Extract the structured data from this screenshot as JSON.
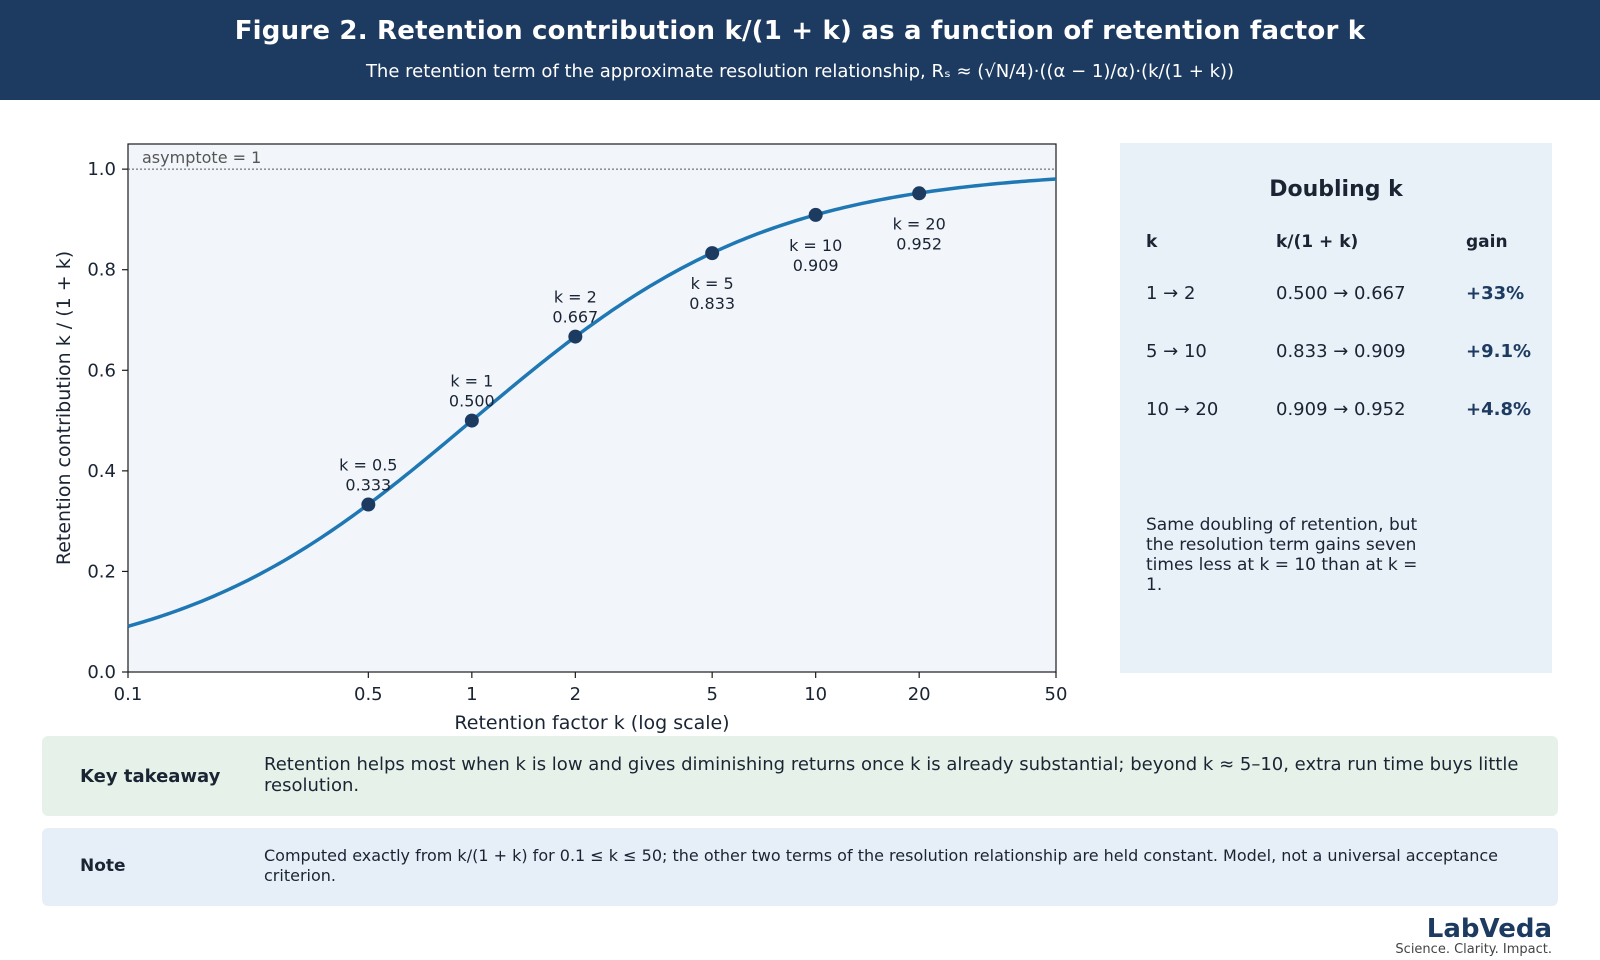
{
  "header": {
    "title": "Figure 2. Retention contribution k/(1 + k) as a function of retention factor k",
    "subtitle": "The retention term of the approximate resolution relationship, Rₛ ≈ (√N/4)·((α − 1)/α)·(k/(1 + k))"
  },
  "chart_data": {
    "type": "line",
    "title": "",
    "xlabel": "Retention factor k (log scale)",
    "ylabel": "Retention contribution  k / (1 + k)",
    "xscale": "log",
    "xlim": [
      0.1,
      50
    ],
    "ylim": [
      0,
      1.05
    ],
    "xticks": [
      0.1,
      0.5,
      1,
      2,
      5,
      10,
      20,
      50
    ],
    "xtick_labels": [
      "0.1",
      "0.5",
      "1",
      "2",
      "5",
      "10",
      "20",
      "50"
    ],
    "yticks": [
      0,
      0.2,
      0.4,
      0.6,
      0.8,
      1.0
    ],
    "ytick_labels": [
      "0.0",
      "0.2",
      "0.4",
      "0.6",
      "0.8",
      "1.0"
    ],
    "curve": {
      "function": "k/(1+k)",
      "color": "#1f77b4"
    },
    "asymptote": {
      "y": 1,
      "label": "asymptote = 1"
    },
    "points": [
      {
        "k": 0.5,
        "value": 0.333,
        "label": "k = 0.5",
        "value_label": "0.333",
        "label_position": "above"
      },
      {
        "k": 1,
        "value": 0.5,
        "label": "k = 1",
        "value_label": "0.500",
        "label_position": "above"
      },
      {
        "k": 2,
        "value": 0.667,
        "label": "k = 2",
        "value_label": "0.667",
        "label_position": "above"
      },
      {
        "k": 5,
        "value": 0.833,
        "label": "k = 5",
        "value_label": "0.833",
        "label_position": "below"
      },
      {
        "k": 10,
        "value": 0.909,
        "label": "k = 10",
        "value_label": "0.909",
        "label_position": "below"
      },
      {
        "k": 20,
        "value": 0.952,
        "label": "k = 20",
        "value_label": "0.952",
        "label_position": "below"
      }
    ],
    "marker_color": "#1d3a60",
    "plot_background": "#f2f6fb",
    "grid": false
  },
  "panel": {
    "title": "Doubling k",
    "headers": [
      "k",
      "k/(1 + k)",
      "gain"
    ],
    "rows": [
      [
        "1 → 2",
        "0.500 → 0.667",
        "+33%"
      ],
      [
        "5 → 10",
        "0.833 → 0.909",
        "+9.1%"
      ],
      [
        "10 → 20",
        "0.909 → 0.952",
        "+4.8%"
      ]
    ],
    "note": "Same doubling of retention, but the resolution term gains seven times less at k = 10 than at k = 1."
  },
  "takeaway": {
    "label": "Key takeaway",
    "text": "Retention helps most when k is low and gives diminishing returns once k is already substantial; beyond k ≈ 5–10, extra run time buys little resolution."
  },
  "note": {
    "label": "Note",
    "text": "Computed exactly from k/(1 + k) for 0.1 ≤ k ≤ 50; the other two terms of the resolution relationship are held constant. Model, not a universal acceptance criterion."
  },
  "brand": {
    "name": "LabVeda",
    "tagline": "Science. Clarity. Impact."
  }
}
